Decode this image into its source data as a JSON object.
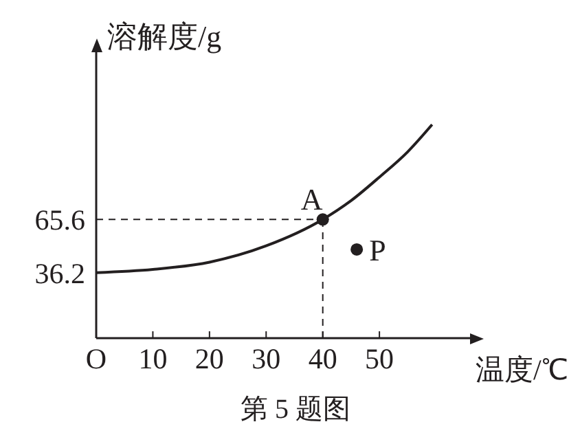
{
  "chart_data": {
    "type": "line",
    "xlabel": "温度/℃",
    "ylabel": "溶解度/g",
    "xlim": [
      0,
      66
    ],
    "ylim": [
      0,
      158
    ],
    "xticks": [
      {
        "value": 0,
        "label": "O"
      },
      10,
      20,
      30,
      40,
      50
    ],
    "yticks": [
      36.2,
      65.6
    ],
    "grid": false,
    "legend": false,
    "marker": "none",
    "series": [
      {
        "color": "#231f20",
        "x": [
          0,
          10,
          20,
          30,
          40,
          45,
          50,
          55,
          59.3
        ],
        "values": [
          36.2,
          38,
          42,
          51,
          65.6,
          76,
          89,
          103,
          118
        ]
      },
      {
        "type": "scatter",
        "color": "#231f20",
        "marker": "circle",
        "x": [
          40,
          46
        ],
        "values": [
          65.6,
          49
        ]
      }
    ],
    "ref_lines": [
      {
        "axis": "x",
        "value": 40,
        "line_style": "dashed",
        "color": "#231f20"
      },
      {
        "axis": "y",
        "value": 65.6,
        "line_style": "dashed",
        "color": "#231f20"
      }
    ],
    "annotations": [
      {
        "text": "A",
        "x": 40,
        "y": 65.6
      },
      {
        "text": "P",
        "x": 46,
        "y": 49
      },
      "第 5 题图"
    ]
  }
}
